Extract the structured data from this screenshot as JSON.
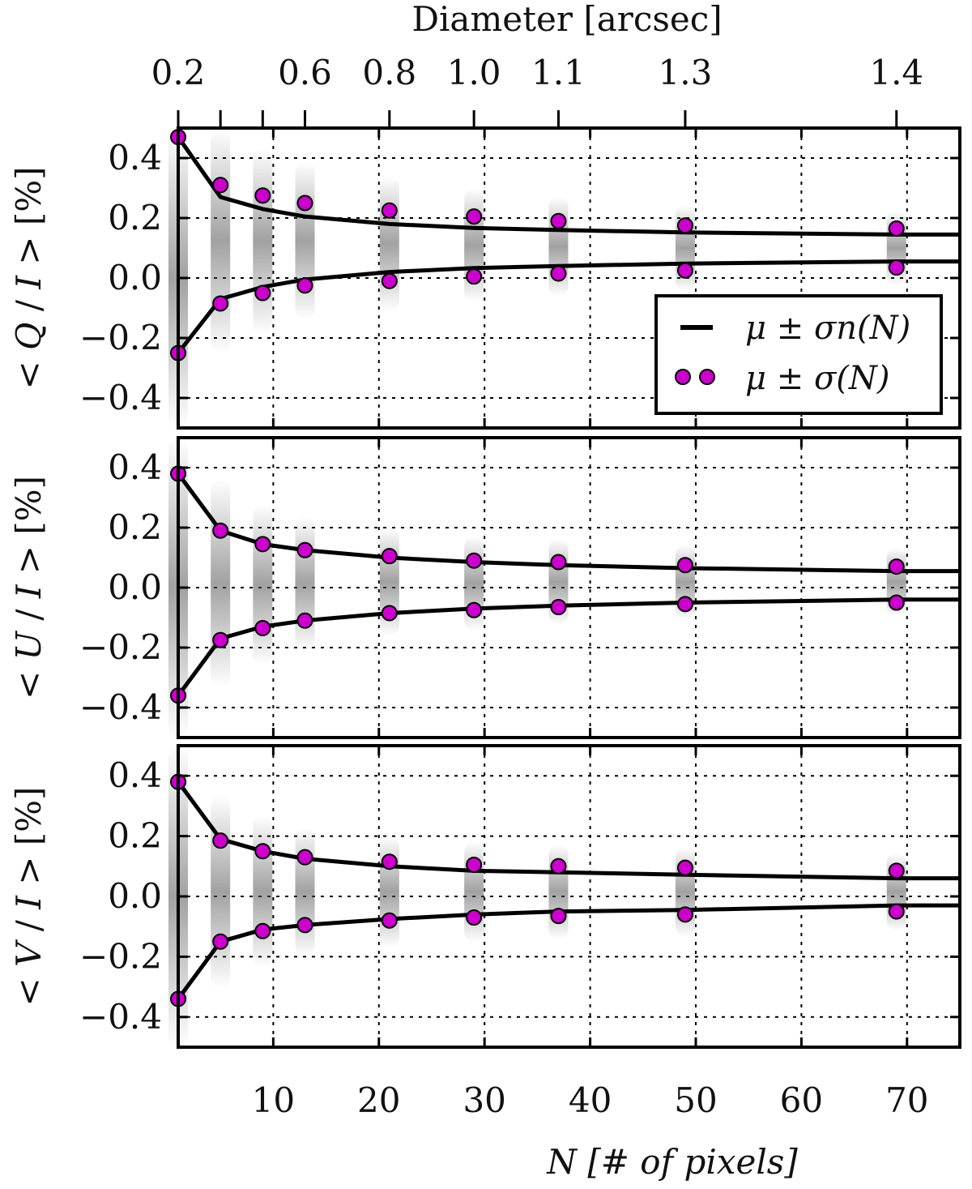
{
  "chart_data": {
    "type": "line",
    "top_axis": {
      "label": "Diameter [arcsec]",
      "ticks": [
        {
          "n": 1,
          "label": "0.2"
        },
        {
          "n": 13,
          "label": "0.6"
        },
        {
          "n": 21,
          "label": "0.8"
        },
        {
          "n": 29,
          "label": "1.0"
        },
        {
          "n": 37,
          "label": "1.1"
        },
        {
          "n": 49,
          "label": "1.3"
        },
        {
          "n": 69,
          "label": "1.4"
        }
      ],
      "minor_ticks_n": [
        5,
        9
      ]
    },
    "x": {
      "label": "N [# of pixels]",
      "lim": [
        1,
        75
      ],
      "ticks": [
        10,
        20,
        30,
        40,
        50,
        60,
        70
      ],
      "tick_labels": [
        "10",
        "20",
        "30",
        "40",
        "50",
        "60",
        "70"
      ]
    },
    "y": {
      "lim": [
        -0.5,
        0.5
      ],
      "ticks": [
        -0.4,
        -0.2,
        0.0,
        0.2,
        0.4
      ],
      "tick_labels": [
        "−0.4",
        "−0.2",
        "0.0",
        "0.2",
        "0.4"
      ]
    },
    "grid": true,
    "N_values": [
      1,
      5,
      9,
      13,
      21,
      29,
      37,
      49,
      69
    ],
    "legend": {
      "placement": "lower-right of top panel",
      "entries": [
        {
          "label": "μ ± σn(N)",
          "marker": "line",
          "color": "#000000"
        },
        {
          "label": "μ ± σ(N)",
          "marker": "dots",
          "color": "#cc00cc"
        }
      ]
    },
    "panels": [
      {
        "ylabel": "< Q / I > [%]",
        "mu": 0.1,
        "sigma_n_upper": [
          0.47,
          0.27,
          0.23,
          0.205,
          0.18,
          0.167,
          0.16,
          0.152,
          0.145
        ],
        "sigma_n_lower": [
          -0.25,
          -0.07,
          -0.03,
          -0.005,
          0.02,
          0.033,
          0.04,
          0.048,
          0.055
        ],
        "sigma_upper": [
          0.47,
          0.31,
          0.275,
          0.25,
          0.225,
          0.205,
          0.19,
          0.175,
          0.165
        ],
        "sigma_lower": [
          -0.25,
          -0.085,
          -0.05,
          -0.025,
          -0.01,
          0.005,
          0.015,
          0.025,
          0.035
        ]
      },
      {
        "ylabel": "< U / I > [%]",
        "mu": 0.0,
        "sigma_n_upper": [
          0.38,
          0.19,
          0.145,
          0.125,
          0.1,
          0.085,
          0.075,
          0.065,
          0.055
        ],
        "sigma_n_lower": [
          -0.36,
          -0.17,
          -0.13,
          -0.11,
          -0.085,
          -0.07,
          -0.06,
          -0.05,
          -0.04
        ],
        "sigma_upper": [
          0.38,
          0.19,
          0.145,
          0.125,
          0.105,
          0.09,
          0.085,
          0.075,
          0.07
        ],
        "sigma_lower": [
          -0.36,
          -0.175,
          -0.135,
          -0.11,
          -0.085,
          -0.075,
          -0.065,
          -0.055,
          -0.05
        ]
      },
      {
        "ylabel": "< V / I > [%]",
        "mu": 0.02,
        "sigma_n_upper": [
          0.38,
          0.19,
          0.15,
          0.125,
          0.1,
          0.085,
          0.08,
          0.072,
          0.06
        ],
        "sigma_n_lower": [
          -0.34,
          -0.15,
          -0.11,
          -0.095,
          -0.075,
          -0.06,
          -0.05,
          -0.045,
          -0.03
        ],
        "sigma_upper": [
          0.38,
          0.185,
          0.15,
          0.13,
          0.115,
          0.105,
          0.1,
          0.095,
          0.085
        ],
        "sigma_lower": [
          -0.34,
          -0.15,
          -0.115,
          -0.095,
          -0.08,
          -0.07,
          -0.065,
          -0.06,
          -0.05
        ]
      }
    ],
    "colors": {
      "line": "#000000",
      "dot_fill": "#cc00cc",
      "dot_edge": "#000000",
      "scatter_cloud": "#555555",
      "grid": "#000000"
    }
  }
}
